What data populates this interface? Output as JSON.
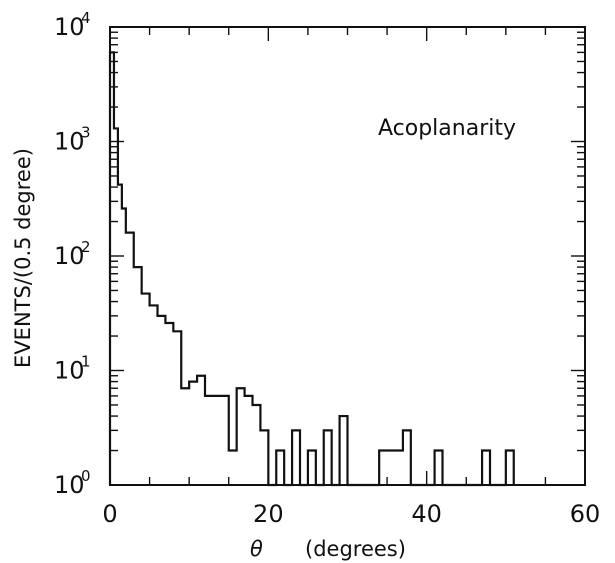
{
  "chart_data": {
    "type": "histogram",
    "title": "",
    "annotation": "Acoplanarity",
    "xlabel_symbol": "θ",
    "xlabel_units": "(degrees)",
    "ylabel": "EVENTS/(0.5 degree)",
    "xlim": [
      0,
      60
    ],
    "ylim": [
      1,
      10000
    ],
    "yscale": "log",
    "x_ticks": [
      {
        "value": 0,
        "label": "0"
      },
      {
        "value": 20,
        "label": "20"
      },
      {
        "value": 40,
        "label": "40"
      },
      {
        "value": 60,
        "label": "60"
      }
    ],
    "y_ticks": [
      {
        "value": 1,
        "base": "10",
        "exp": "0"
      },
      {
        "value": 10,
        "base": "10",
        "exp": "1"
      },
      {
        "value": 100,
        "base": "10",
        "exp": "2"
      },
      {
        "value": 1000,
        "base": "10",
        "exp": "3"
      },
      {
        "value": 10000,
        "base": "10",
        "exp": "4"
      }
    ],
    "bin_width": 0.5,
    "bins": [
      [
        0.0,
        6000
      ],
      [
        0.5,
        1300
      ],
      [
        1.0,
        420
      ],
      [
        1.5,
        260
      ],
      [
        2.0,
        160
      ],
      [
        2.5,
        160
      ],
      [
        3.0,
        80
      ],
      [
        3.5,
        80
      ],
      [
        4.0,
        47
      ],
      [
        4.5,
        47
      ],
      [
        5.0,
        37
      ],
      [
        5.5,
        37
      ],
      [
        6.0,
        30
      ],
      [
        6.5,
        30
      ],
      [
        7.0,
        26
      ],
      [
        7.5,
        26
      ],
      [
        8.0,
        22
      ],
      [
        8.5,
        22
      ],
      [
        9.0,
        7
      ],
      [
        9.5,
        7
      ],
      [
        10.0,
        8
      ],
      [
        10.5,
        8
      ],
      [
        11.0,
        9
      ],
      [
        11.5,
        9
      ],
      [
        12.0,
        6
      ],
      [
        12.5,
        6
      ],
      [
        13.0,
        6
      ],
      [
        13.5,
        6
      ],
      [
        14.0,
        6
      ],
      [
        14.5,
        6
      ],
      [
        15.0,
        2
      ],
      [
        15.5,
        2
      ],
      [
        16.0,
        7
      ],
      [
        16.5,
        7
      ],
      [
        17.0,
        6
      ],
      [
        17.5,
        6
      ],
      [
        18.0,
        5
      ],
      [
        18.5,
        5
      ],
      [
        19.0,
        3
      ],
      [
        19.5,
        3
      ],
      [
        20.0,
        0
      ],
      [
        20.5,
        0
      ],
      [
        21.0,
        2
      ],
      [
        21.5,
        2
      ],
      [
        22.0,
        0
      ],
      [
        22.5,
        0
      ],
      [
        23.0,
        3
      ],
      [
        23.5,
        3
      ],
      [
        24.0,
        0
      ],
      [
        24.5,
        0
      ],
      [
        25.0,
        2
      ],
      [
        25.5,
        2
      ],
      [
        26.0,
        0
      ],
      [
        26.5,
        0
      ],
      [
        27.0,
        3
      ],
      [
        27.5,
        3
      ],
      [
        28.0,
        0
      ],
      [
        28.5,
        0
      ],
      [
        29.0,
        4
      ],
      [
        29.5,
        4
      ],
      [
        30.0,
        0
      ],
      [
        30.5,
        0
      ],
      [
        31.0,
        0
      ],
      [
        31.5,
        0
      ],
      [
        32.0,
        0
      ],
      [
        32.5,
        0
      ],
      [
        33.0,
        0
      ],
      [
        33.5,
        0
      ],
      [
        34.0,
        2
      ],
      [
        34.5,
        2
      ],
      [
        35.0,
        2
      ],
      [
        35.5,
        2
      ],
      [
        36.0,
        2
      ],
      [
        36.5,
        2
      ],
      [
        37.0,
        3
      ],
      [
        37.5,
        3
      ],
      [
        38.0,
        0
      ],
      [
        38.5,
        0
      ],
      [
        39.0,
        0
      ],
      [
        39.5,
        0
      ],
      [
        40.0,
        0
      ],
      [
        40.5,
        0
      ],
      [
        41.0,
        2
      ],
      [
        41.5,
        2
      ],
      [
        42.0,
        0
      ],
      [
        42.5,
        0
      ],
      [
        43.0,
        0
      ],
      [
        43.5,
        0
      ],
      [
        44.0,
        0
      ],
      [
        44.5,
        0
      ],
      [
        45.0,
        0
      ],
      [
        45.5,
        0
      ],
      [
        46.0,
        0
      ],
      [
        46.5,
        0
      ],
      [
        47.0,
        2
      ],
      [
        47.5,
        2
      ],
      [
        48.0,
        0
      ],
      [
        48.5,
        0
      ],
      [
        49.0,
        0
      ],
      [
        49.5,
        0
      ],
      [
        50.0,
        2
      ],
      [
        50.5,
        2
      ]
    ]
  }
}
